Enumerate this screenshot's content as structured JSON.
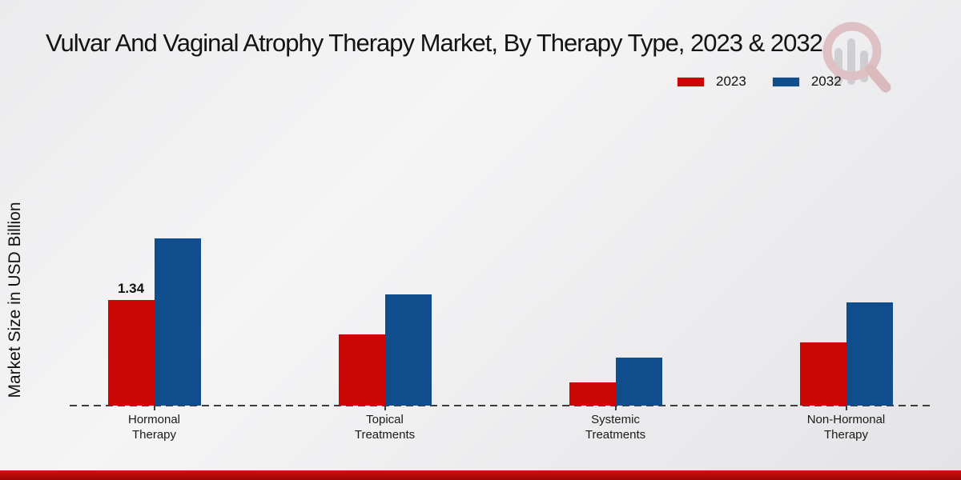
{
  "chart_data": {
    "type": "bar",
    "title": "Vulvar And Vaginal Atrophy Therapy Market, By Therapy Type, 2023 & 2032",
    "ylabel": "Market Size in USD Billion",
    "xlabel": "",
    "categories": [
      "Hormonal Therapy",
      "Topical Treatments",
      "Systemic Treatments",
      "Non-Hormonal Therapy"
    ],
    "categories_display": [
      "Hormonal\nTherapy",
      "Topical\nTreatments",
      "Systemic\nTreatments",
      "Non-Hormonal\nTherapy"
    ],
    "series": [
      {
        "name": "2023",
        "color": "#cb0606",
        "values": [
          1.34,
          0.9,
          0.29,
          0.8
        ]
      },
      {
        "name": "2032",
        "color": "#0f4d8c",
        "values": [
          2.12,
          1.41,
          0.61,
          1.31
        ]
      }
    ],
    "ylim": [
      0,
      2.5
    ],
    "grid": false,
    "legend_position": "top-right",
    "baseline_style": "dashed",
    "annotations": [
      {
        "series": "2023",
        "category": "Hormonal Therapy",
        "text": "1.34"
      }
    ]
  },
  "watermark": {
    "icon": "magnifier-bar-chart-logo"
  },
  "footer": {
    "accent_color": "#c40b0b"
  }
}
